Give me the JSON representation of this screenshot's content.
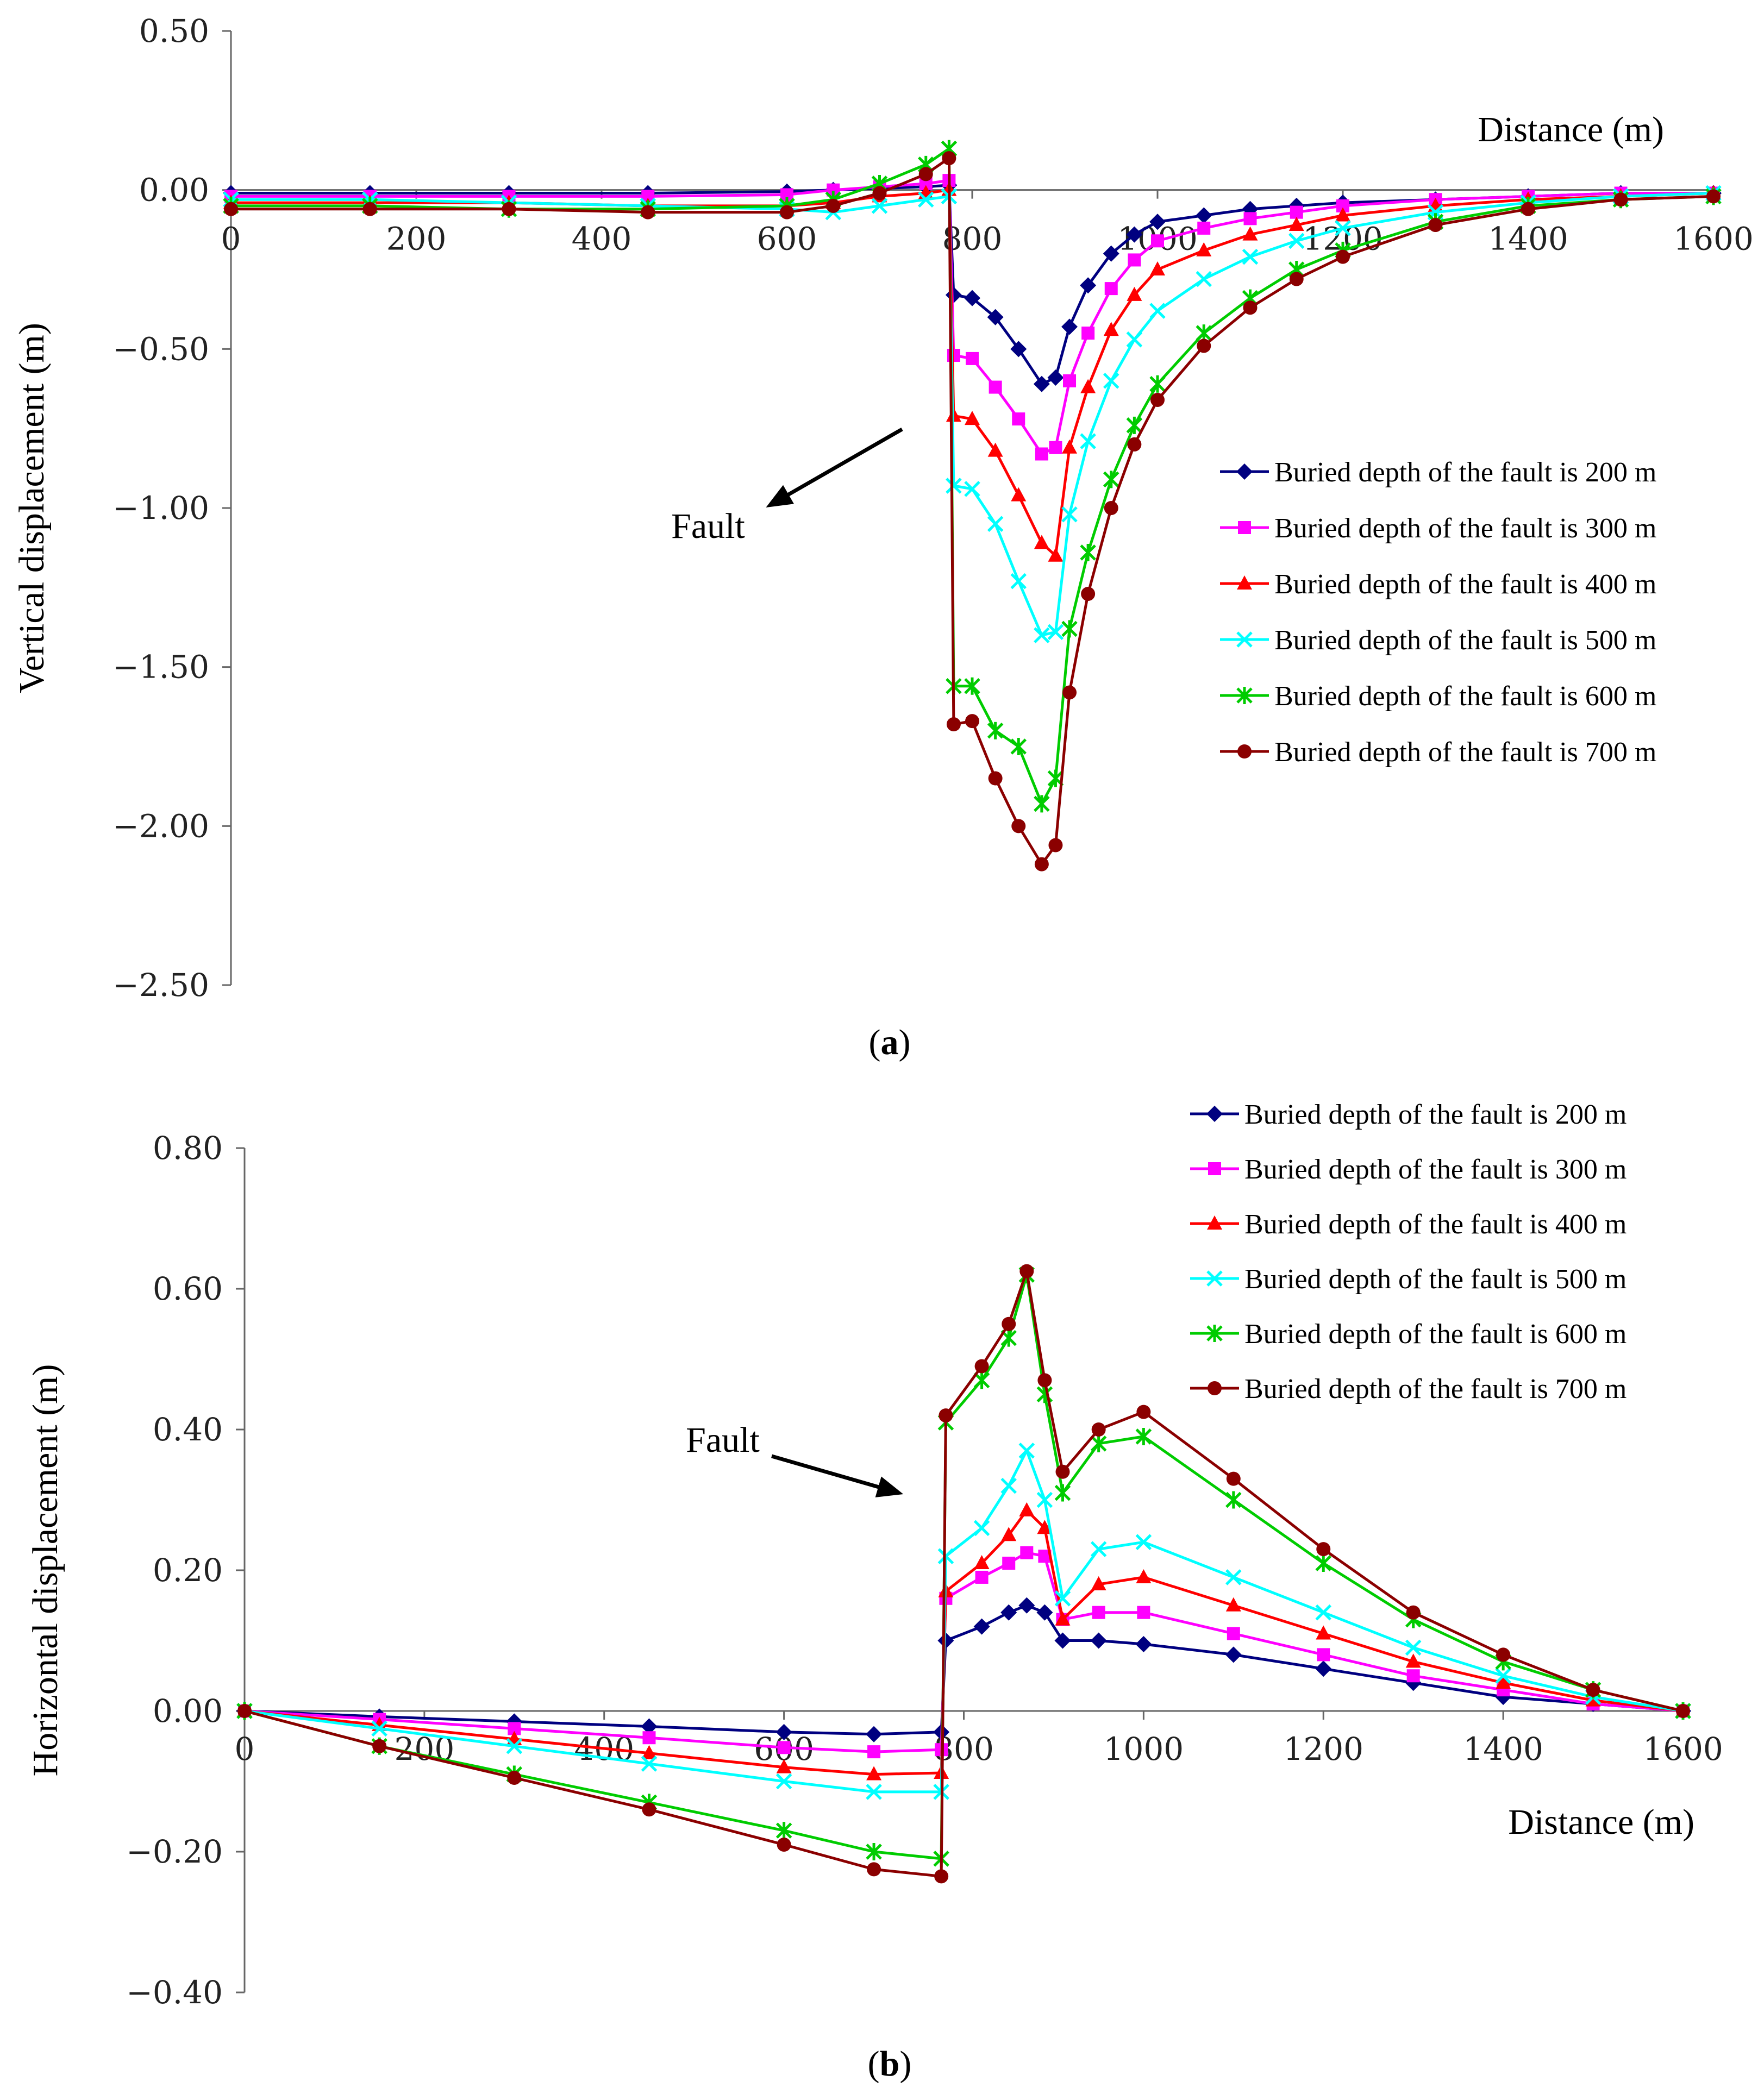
{
  "chart_data": [
    {
      "type": "line",
      "panel_label": "a",
      "xlabel": "Distance (m)",
      "ylabel": "Vertical displacement (m)",
      "xlim": [
        0,
        1600
      ],
      "ylim": [
        -2.5,
        0.5
      ],
      "xticks": [
        "0",
        "200",
        "400",
        "600",
        "800",
        "1000",
        "1200",
        "1400",
        "1600"
      ],
      "yticks": [
        "0.50",
        "0.00",
        "−0.50",
        "−1.00",
        "−1.50",
        "−2.00",
        "−2.50"
      ],
      "annotation": "Fault",
      "series": [
        {
          "name": "Buried depth of the fault is 200 m",
          "color": "#000080",
          "marker": "diamond",
          "x": [
            0,
            150,
            300,
            450,
            600,
            650,
            700,
            750,
            775,
            780,
            800,
            825,
            850,
            875,
            890,
            905,
            925,
            950,
            975,
            1000,
            1050,
            1100,
            1150,
            1200,
            1300,
            1400,
            1500,
            1600
          ],
          "y": [
            -0.01,
            -0.01,
            -0.01,
            -0.01,
            -0.005,
            0.0,
            0.005,
            0.01,
            0.015,
            -0.33,
            -0.34,
            -0.4,
            -0.5,
            -0.61,
            -0.59,
            -0.43,
            -0.3,
            -0.2,
            -0.14,
            -0.1,
            -0.08,
            -0.06,
            -0.05,
            -0.04,
            -0.03,
            -0.02,
            -0.01,
            -0.01
          ]
        },
        {
          "name": "Buried depth of the fault is 300 m",
          "color": "#ff00ff",
          "marker": "square",
          "x": [
            0,
            150,
            300,
            450,
            600,
            650,
            700,
            750,
            775,
            780,
            800,
            825,
            850,
            875,
            890,
            905,
            925,
            950,
            975,
            1000,
            1050,
            1100,
            1150,
            1200,
            1300,
            1400,
            1500,
            1600
          ],
          "y": [
            -0.02,
            -0.02,
            -0.02,
            -0.02,
            -0.015,
            0.0,
            0.01,
            0.02,
            0.03,
            -0.52,
            -0.53,
            -0.62,
            -0.72,
            -0.83,
            -0.81,
            -0.6,
            -0.45,
            -0.31,
            -0.22,
            -0.16,
            -0.12,
            -0.09,
            -0.07,
            -0.05,
            -0.03,
            -0.02,
            -0.01,
            -0.01
          ]
        },
        {
          "name": "Buried depth of the fault is 400 m",
          "color": "#ff0000",
          "marker": "triangle",
          "x": [
            0,
            150,
            300,
            450,
            600,
            650,
            700,
            750,
            775,
            780,
            800,
            825,
            850,
            875,
            890,
            905,
            925,
            950,
            975,
            1000,
            1050,
            1100,
            1150,
            1200,
            1300,
            1400,
            1500,
            1600
          ],
          "y": [
            -0.04,
            -0.04,
            -0.04,
            -0.05,
            -0.05,
            -0.04,
            -0.02,
            -0.01,
            0.0,
            -0.71,
            -0.72,
            -0.82,
            -0.96,
            -1.11,
            -1.15,
            -0.81,
            -0.62,
            -0.44,
            -0.33,
            -0.25,
            -0.19,
            -0.14,
            -0.11,
            -0.08,
            -0.05,
            -0.03,
            -0.02,
            -0.01
          ]
        },
        {
          "name": "Buried depth of the fault is 500 m",
          "color": "#00ffff",
          "marker": "x",
          "x": [
            0,
            150,
            300,
            450,
            600,
            650,
            700,
            750,
            775,
            780,
            800,
            825,
            850,
            875,
            890,
            905,
            925,
            950,
            975,
            1000,
            1050,
            1100,
            1150,
            1200,
            1300,
            1400,
            1500,
            1600
          ],
          "y": [
            -0.03,
            -0.03,
            -0.04,
            -0.05,
            -0.06,
            -0.07,
            -0.05,
            -0.03,
            -0.02,
            -0.93,
            -0.94,
            -1.05,
            -1.23,
            -1.4,
            -1.39,
            -1.02,
            -0.79,
            -0.6,
            -0.47,
            -0.38,
            -0.28,
            -0.21,
            -0.16,
            -0.12,
            -0.07,
            -0.04,
            -0.02,
            -0.01
          ]
        },
        {
          "name": "Buried depth of the fault is 600 m",
          "color": "#00cc00",
          "marker": "star",
          "x": [
            0,
            150,
            300,
            450,
            600,
            650,
            700,
            750,
            775,
            780,
            800,
            825,
            850,
            875,
            890,
            905,
            925,
            950,
            975,
            1000,
            1050,
            1100,
            1150,
            1200,
            1300,
            1400,
            1500,
            1600
          ],
          "y": [
            -0.05,
            -0.05,
            -0.06,
            -0.06,
            -0.05,
            -0.03,
            0.02,
            0.08,
            0.13,
            -1.56,
            -1.56,
            -1.7,
            -1.75,
            -1.93,
            -1.85,
            -1.38,
            -1.14,
            -0.91,
            -0.74,
            -0.61,
            -0.45,
            -0.34,
            -0.25,
            -0.19,
            -0.1,
            -0.05,
            -0.03,
            -0.02
          ]
        },
        {
          "name": "Buried depth of the fault is 700 m",
          "color": "#8b0000",
          "marker": "circle",
          "x": [
            0,
            150,
            300,
            450,
            600,
            650,
            700,
            750,
            775,
            780,
            800,
            825,
            850,
            875,
            890,
            905,
            925,
            950,
            975,
            1000,
            1050,
            1100,
            1150,
            1200,
            1300,
            1400,
            1500,
            1600
          ],
          "y": [
            -0.06,
            -0.06,
            -0.06,
            -0.07,
            -0.07,
            -0.05,
            -0.01,
            0.05,
            0.1,
            -1.68,
            -1.67,
            -1.85,
            -2.0,
            -2.12,
            -2.06,
            -1.58,
            -1.27,
            -1.0,
            -0.8,
            -0.66,
            -0.49,
            -0.37,
            -0.28,
            -0.21,
            -0.11,
            -0.06,
            -0.03,
            -0.02
          ]
        }
      ]
    },
    {
      "type": "line",
      "panel_label": "b",
      "xlabel": "Distance (m)",
      "ylabel": "Horizontal displacement (m)",
      "xlim": [
        0,
        1600
      ],
      "ylim": [
        -0.4,
        0.8
      ],
      "xticks": [
        "0",
        "200",
        "400",
        "600",
        "800",
        "1000",
        "1200",
        "1400",
        "1600"
      ],
      "yticks": [
        "0.80",
        "0.60",
        "0.40",
        "0.20",
        "0.00",
        "−0.20",
        "−0.40"
      ],
      "annotation": "Fault",
      "series": [
        {
          "name": "Buried depth of the fault is 200 m",
          "color": "#000080",
          "marker": "diamond",
          "x": [
            0,
            150,
            300,
            450,
            600,
            700,
            775,
            780,
            820,
            850,
            870,
            890,
            910,
            950,
            1000,
            1100,
            1200,
            1300,
            1400,
            1500,
            1600
          ],
          "y": [
            0,
            -0.008,
            -0.015,
            -0.022,
            -0.03,
            -0.033,
            -0.03,
            0.1,
            0.12,
            0.14,
            0.15,
            0.14,
            0.1,
            0.1,
            0.095,
            0.08,
            0.06,
            0.04,
            0.02,
            0.01,
            0.0
          ]
        },
        {
          "name": "Buried depth of the fault is 300 m",
          "color": "#ff00ff",
          "marker": "square",
          "x": [
            0,
            150,
            300,
            450,
            600,
            700,
            775,
            780,
            820,
            850,
            870,
            890,
            910,
            950,
            1000,
            1100,
            1200,
            1300,
            1400,
            1500,
            1600
          ],
          "y": [
            0,
            -0.012,
            -0.025,
            -0.038,
            -0.052,
            -0.058,
            -0.055,
            0.16,
            0.19,
            0.21,
            0.225,
            0.22,
            0.13,
            0.14,
            0.14,
            0.11,
            0.08,
            0.05,
            0.03,
            0.01,
            0.0
          ]
        },
        {
          "name": "Buried depth of the fault is 400 m",
          "color": "#ff0000",
          "marker": "triangle",
          "x": [
            0,
            150,
            300,
            450,
            600,
            700,
            775,
            780,
            820,
            850,
            870,
            890,
            910,
            950,
            1000,
            1100,
            1200,
            1300,
            1400,
            1500,
            1600
          ],
          "y": [
            0,
            -0.02,
            -0.04,
            -0.06,
            -0.08,
            -0.09,
            -0.088,
            0.17,
            0.21,
            0.25,
            0.285,
            0.26,
            0.13,
            0.18,
            0.19,
            0.15,
            0.11,
            0.07,
            0.04,
            0.015,
            0.0
          ]
        },
        {
          "name": "Buried depth of the fault is 500 m",
          "color": "#00ffff",
          "marker": "x",
          "x": [
            0,
            150,
            300,
            450,
            600,
            700,
            775,
            780,
            820,
            850,
            870,
            890,
            910,
            950,
            1000,
            1100,
            1200,
            1300,
            1400,
            1500,
            1600
          ],
          "y": [
            0,
            -0.025,
            -0.05,
            -0.075,
            -0.1,
            -0.115,
            -0.115,
            0.22,
            0.26,
            0.32,
            0.37,
            0.3,
            0.16,
            0.23,
            0.24,
            0.19,
            0.14,
            0.09,
            0.05,
            0.02,
            0.0
          ]
        },
        {
          "name": "Buried depth of the fault is 600 m",
          "color": "#00cc00",
          "marker": "star",
          "x": [
            0,
            150,
            300,
            450,
            600,
            700,
            775,
            780,
            820,
            850,
            870,
            890,
            910,
            950,
            1000,
            1100,
            1200,
            1300,
            1400,
            1500,
            1600
          ],
          "y": [
            0,
            -0.05,
            -0.09,
            -0.13,
            -0.17,
            -0.2,
            -0.21,
            0.41,
            0.47,
            0.53,
            0.62,
            0.45,
            0.31,
            0.38,
            0.39,
            0.3,
            0.21,
            0.13,
            0.07,
            0.03,
            0.0
          ]
        },
        {
          "name": "Buried depth of the fault is 700 m",
          "color": "#8b0000",
          "marker": "circle",
          "x": [
            0,
            150,
            300,
            450,
            600,
            700,
            775,
            780,
            820,
            850,
            870,
            890,
            910,
            950,
            1000,
            1100,
            1200,
            1300,
            1400,
            1500,
            1600
          ],
          "y": [
            0,
            -0.05,
            -0.095,
            -0.14,
            -0.19,
            -0.225,
            -0.235,
            0.42,
            0.49,
            0.55,
            0.625,
            0.47,
            0.34,
            0.4,
            0.425,
            0.33,
            0.23,
            0.14,
            0.08,
            0.03,
            0.0
          ]
        }
      ]
    }
  ]
}
